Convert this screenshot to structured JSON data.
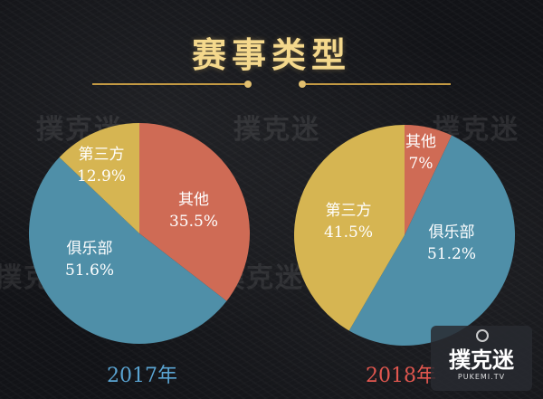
{
  "title": "赛事类型",
  "watermark": "撲克迷",
  "logo": {
    "brand": "撲克迷",
    "site": "PUKEMI.TV"
  },
  "colors": {
    "club": "#4f8fa8",
    "other": "#cf6b55",
    "third_party": "#d6b552",
    "title": "#f4d88c"
  },
  "chart_data": [
    {
      "type": "pie",
      "label": "2017年",
      "label_color": "#5aa4d2",
      "slices": [
        {
          "name": "其他",
          "value": 35.5,
          "display": "35.5%",
          "color": "#cf6b55"
        },
        {
          "name": "俱乐部",
          "value": 51.6,
          "display": "51.6%",
          "color": "#4f8fa8"
        },
        {
          "name": "第三方",
          "value": 12.9,
          "display": "12.9%",
          "color": "#d6b552"
        }
      ]
    },
    {
      "type": "pie",
      "label": "2018年",
      "label_color": "#e2574f",
      "slices": [
        {
          "name": "其他",
          "value": 7,
          "display": "7%",
          "color": "#cf6b55"
        },
        {
          "name": "俱乐部",
          "value": 51.2,
          "display": "51.2%",
          "color": "#4f8fa8"
        },
        {
          "name": "第三方",
          "value": 41.5,
          "display": "41.5%",
          "color": "#d6b552"
        }
      ]
    }
  ]
}
